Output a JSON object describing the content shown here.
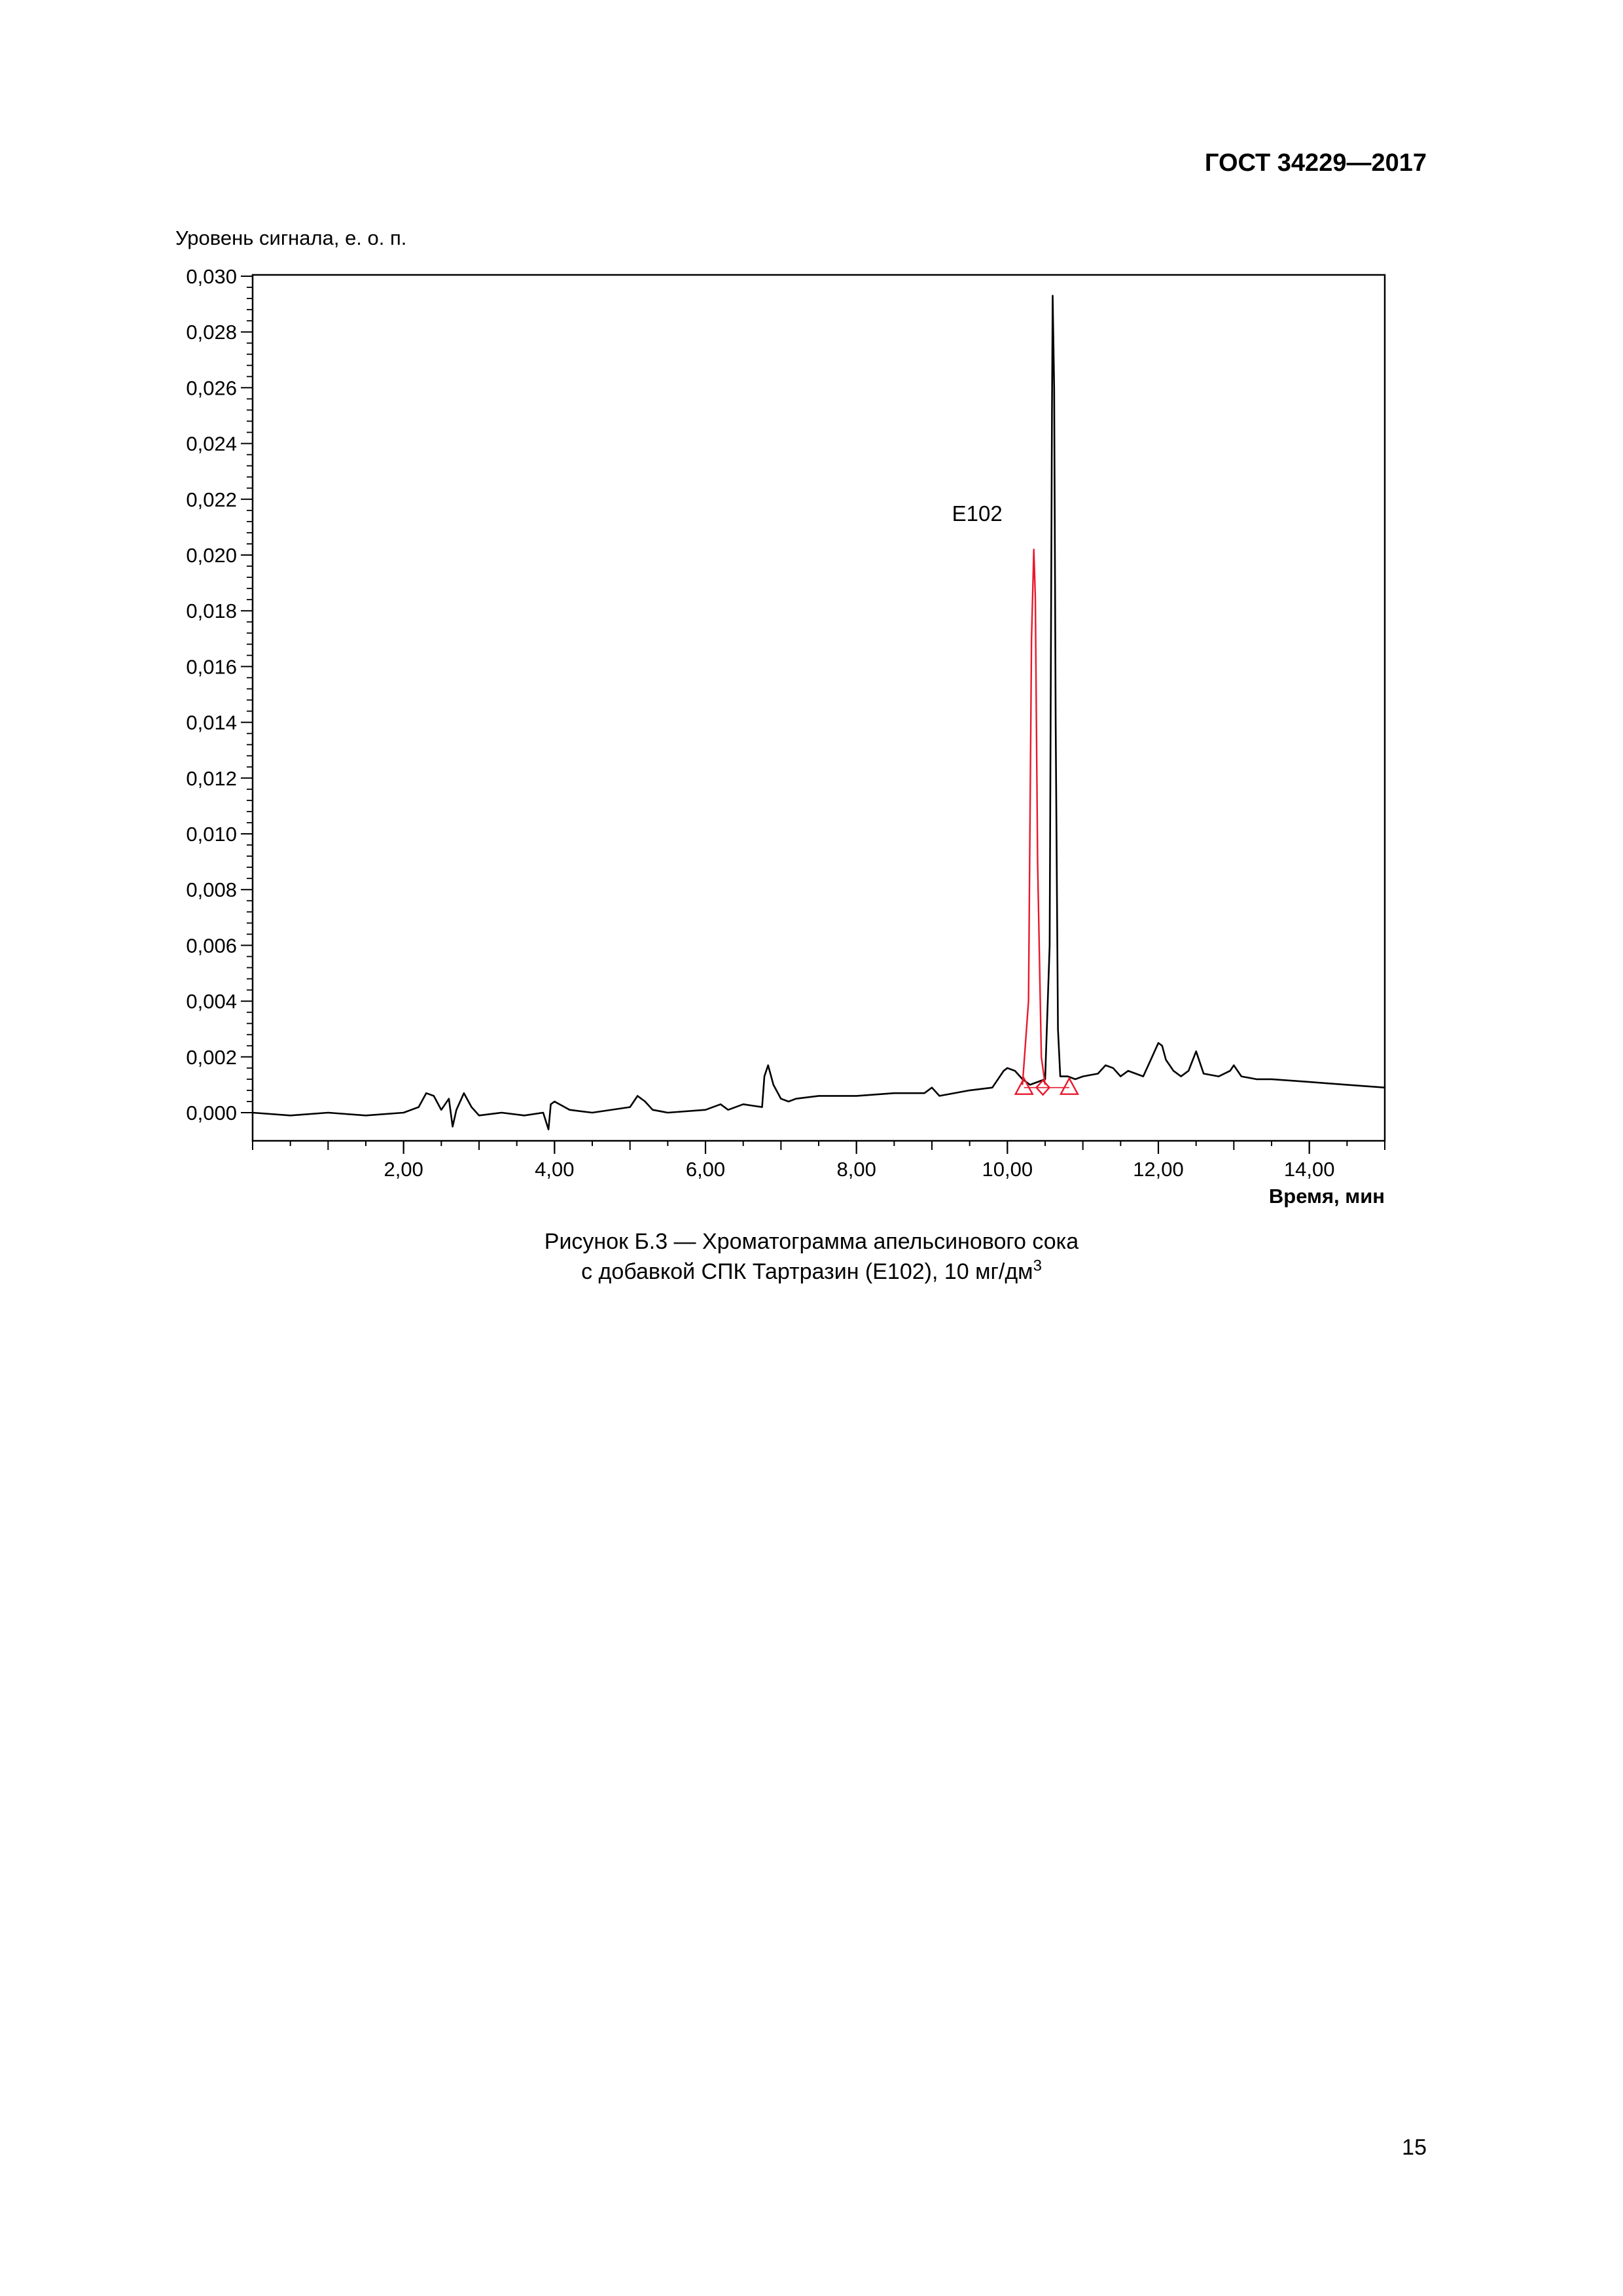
{
  "header": {
    "standard": "ГОСТ 34229—2017"
  },
  "figure": {
    "caption_line1": "Рисунок Б.3 — Хроматограмма апельсинового сока",
    "caption_line2_text": "с добавкой СПК Тартразин (Е102), 10 мг/дм",
    "caption_line2_sup": "3"
  },
  "page_number": "15",
  "chart_data": {
    "type": "line",
    "ylabel": "Уровень сигнала, е. о. п.",
    "xlabel": "Время, мин",
    "xlim": [
      0,
      15
    ],
    "ylim": [
      -0.001,
      0.03
    ],
    "x_ticks": [
      2,
      4,
      6,
      8,
      10,
      12,
      14
    ],
    "x_tick_labels": [
      "2,00",
      "4,00",
      "6,00",
      "8,00",
      "10,00",
      "12,00",
      "14,00"
    ],
    "y_ticks": [
      0,
      0.002,
      0.004,
      0.006,
      0.008,
      0.01,
      0.012,
      0.014,
      0.016,
      0.018,
      0.02,
      0.022,
      0.024,
      0.026,
      0.028,
      0.03
    ],
    "y_tick_labels": [
      "0,000",
      "0,002",
      "0,004",
      "0,006",
      "0,008",
      "0,010",
      "0,012",
      "0,014",
      "0,016",
      "0,018",
      "0,020",
      "0,022",
      "0,024",
      "0,026",
      "0,028",
      "0,030"
    ],
    "annotation": {
      "text": "Е102",
      "x": 9.6,
      "y": 0.0215
    },
    "colors": {
      "sample": "#000000",
      "standard": "#e8192c"
    },
    "series": [
      {
        "color": "#000000",
        "x": [
          0,
          0.5,
          1.0,
          1.5,
          2.0,
          2.2,
          2.3,
          2.4,
          2.5,
          2.6,
          2.65,
          2.7,
          2.8,
          2.9,
          3.0,
          3.3,
          3.6,
          3.85,
          3.92,
          3.95,
          4.0,
          4.2,
          4.5,
          5.0,
          5.1,
          5.2,
          5.3,
          5.5,
          6.0,
          6.2,
          6.3,
          6.5,
          6.75,
          6.78,
          6.83,
          6.9,
          7.0,
          7.1,
          7.2,
          7.5,
          8.0,
          8.5,
          8.9,
          9.0,
          9.1,
          9.5,
          9.8,
          9.95,
          10.0,
          10.1,
          10.2,
          10.3,
          10.4,
          10.5,
          10.56,
          10.59,
          10.6,
          10.62,
          10.64,
          10.67,
          10.7,
          10.8,
          10.9,
          11.0,
          11.2,
          11.3,
          11.4,
          11.5,
          11.6,
          11.8,
          11.9,
          12.0,
          12.05,
          12.1,
          12.2,
          12.3,
          12.4,
          12.5,
          12.6,
          12.8,
          12.95,
          13.0,
          13.1,
          13.3,
          13.5,
          14.0,
          14.5,
          15.0
        ],
        "y": [
          0.0,
          -0.0001,
          0.0,
          -0.0001,
          0.0,
          0.0002,
          0.0007,
          0.0006,
          0.0001,
          0.0005,
          -0.0005,
          0.0001,
          0.0007,
          0.0002,
          -0.0001,
          0.0,
          -0.0001,
          0.0,
          -0.0006,
          0.0003,
          0.0004,
          0.0001,
          0.0,
          0.0002,
          0.0006,
          0.0004,
          0.0001,
          0.0,
          0.0001,
          0.0003,
          0.0001,
          0.0003,
          0.0002,
          0.0013,
          0.0017,
          0.001,
          0.0005,
          0.0004,
          0.0005,
          0.0006,
          0.0006,
          0.0007,
          0.0007,
          0.0009,
          0.0006,
          0.0008,
          0.0009,
          0.0015,
          0.0016,
          0.0015,
          0.0012,
          0.001,
          0.0011,
          0.0012,
          0.006,
          0.025,
          0.0293,
          0.026,
          0.014,
          0.003,
          0.0013,
          0.0013,
          0.0012,
          0.0013,
          0.0014,
          0.0017,
          0.0016,
          0.0013,
          0.0015,
          0.0013,
          0.0019,
          0.0025,
          0.0024,
          0.0019,
          0.0015,
          0.0013,
          0.0015,
          0.0022,
          0.0014,
          0.0013,
          0.0015,
          0.0017,
          0.0013,
          0.0012,
          0.0012,
          0.0011,
          0.001,
          0.0009
        ]
      },
      {
        "color": "#e8192c",
        "x": [
          10.2,
          10.28,
          10.32,
          10.35,
          10.37,
          10.4,
          10.45,
          10.5
        ],
        "y": [
          0.001,
          0.004,
          0.017,
          0.0202,
          0.0185,
          0.009,
          0.002,
          0.001
        ]
      }
    ],
    "markers": [
      {
        "shape": "triangle",
        "x": 10.22,
        "y": 0.0009
      },
      {
        "shape": "diamond",
        "x": 10.47,
        "y": 0.0009
      },
      {
        "shape": "triangle",
        "x": 10.82,
        "y": 0.0009
      }
    ]
  }
}
